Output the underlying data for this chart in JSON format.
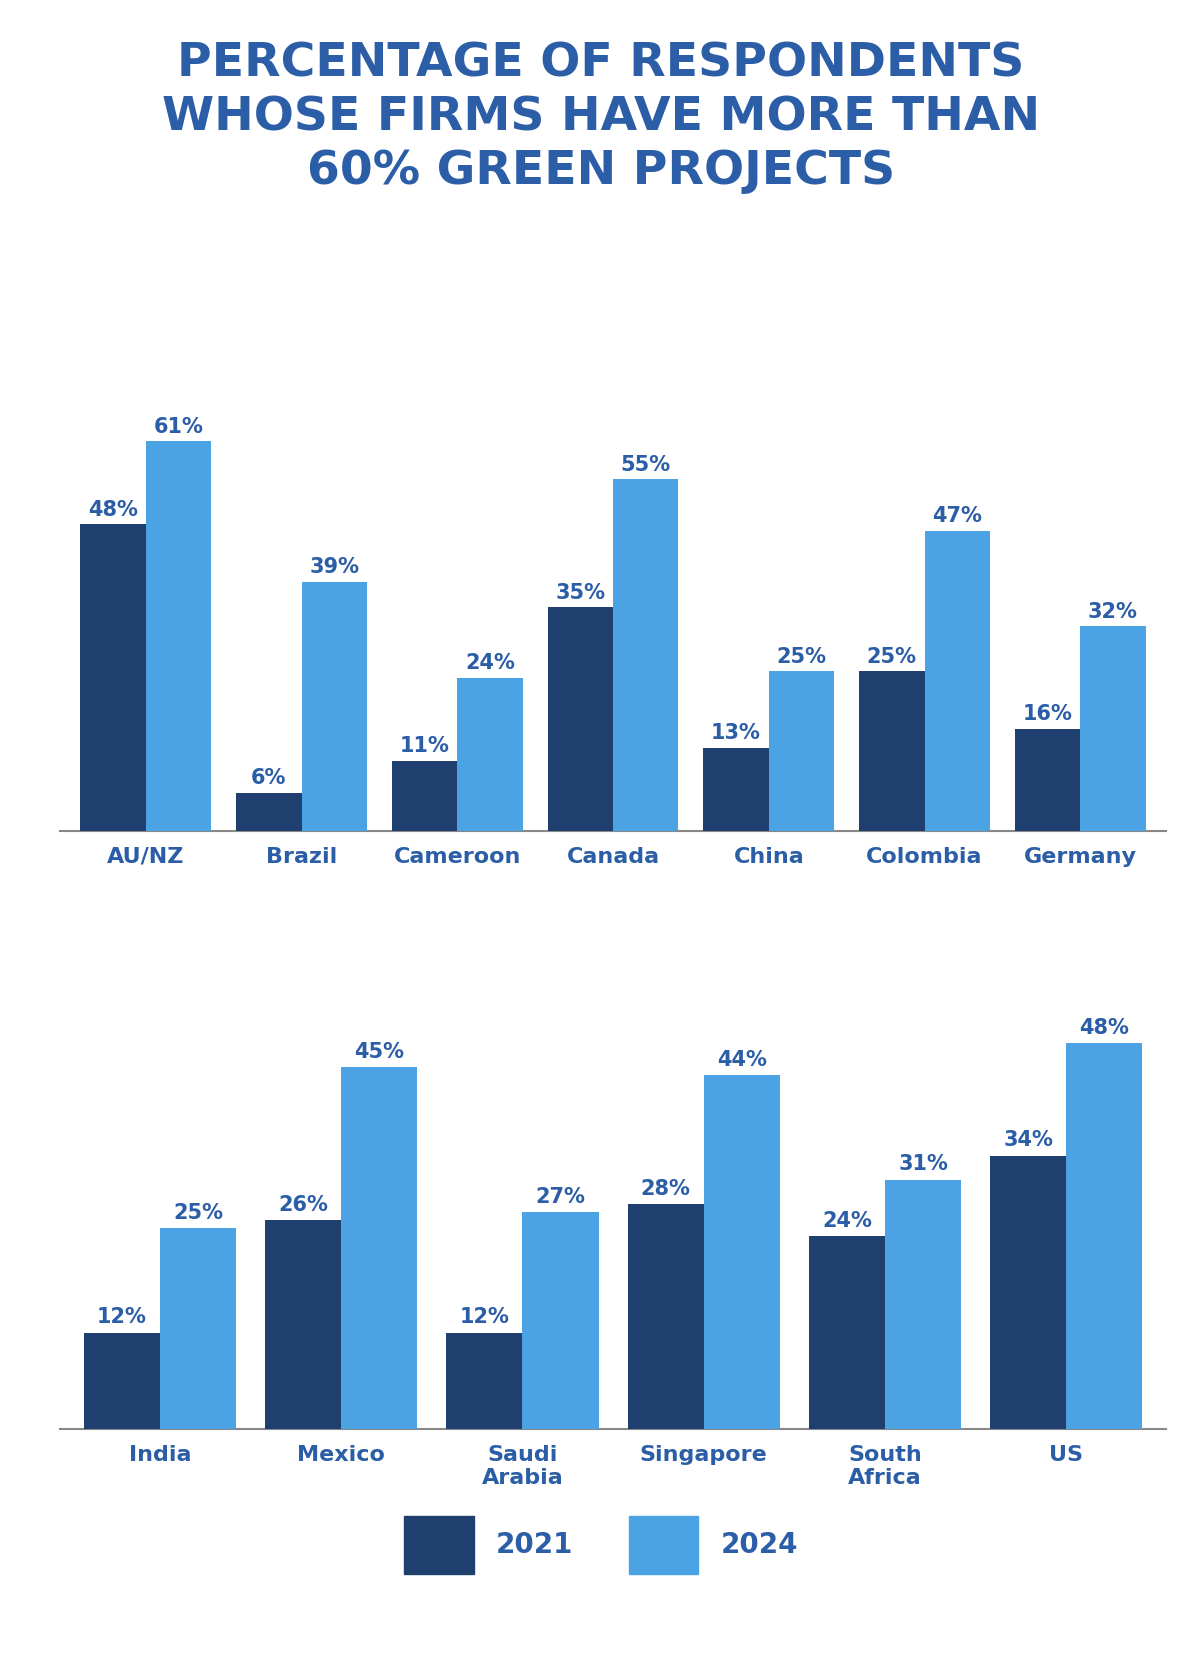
{
  "title": "PERCENTAGE OF RESPONDENTS\nWHOSE FIRMS HAVE MORE THAN\n60% GREEN PROJECTS",
  "title_color": "#2B5EA7",
  "background_color": "#FFFFFF",
  "color_2021": "#1F3F6E",
  "color_2024": "#4BA3E3",
  "chart1": {
    "categories": [
      "AU/NZ",
      "Brazil",
      "Cameroon",
      "Canada",
      "China",
      "Colombia",
      "Germany"
    ],
    "values_2021": [
      48,
      6,
      11,
      35,
      13,
      25,
      16
    ],
    "values_2024": [
      61,
      39,
      24,
      55,
      25,
      47,
      32
    ]
  },
  "chart2": {
    "categories": [
      "India",
      "Mexico",
      "Saudi\nArabia",
      "Singapore",
      "South\nAfrica",
      "US"
    ],
    "values_2021": [
      12,
      26,
      12,
      28,
      24,
      34
    ],
    "values_2024": [
      25,
      45,
      27,
      44,
      31,
      48
    ]
  },
  "legend_labels": [
    "2021",
    "2024"
  ],
  "bar_width": 0.42,
  "label_fontsize": 15,
  "tick_fontsize": 16,
  "title_fontsize": 34,
  "legend_fontsize": 20,
  "axline_color": "#888888"
}
